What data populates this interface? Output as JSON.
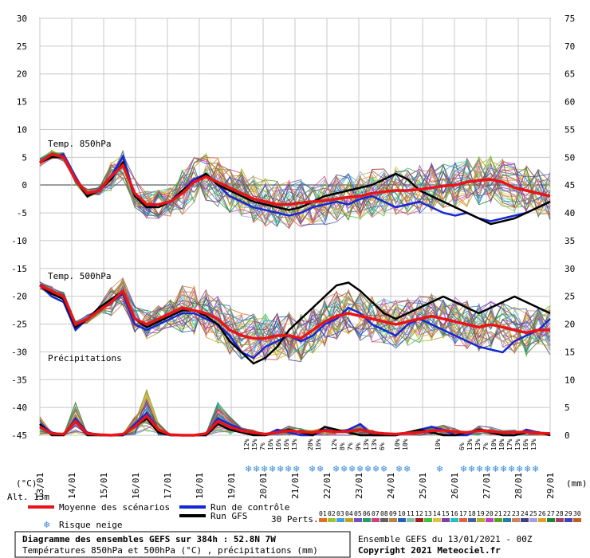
{
  "chart_data": {
    "type": "line",
    "left_axis_labels": [
      "30",
      "25",
      "20",
      "15",
      "10",
      "5",
      "0",
      "-5",
      "-10",
      "-15",
      "-20",
      "-25",
      "-30",
      "-35",
      "-40",
      "-45"
    ],
    "right_axis_labels": [
      "75",
      "70",
      "65",
      "60",
      "55",
      "50",
      "45",
      "40",
      "35",
      "30",
      "25",
      "20",
      "15",
      "10",
      "5",
      "0"
    ],
    "x_dates": [
      "13/01",
      "14/01",
      "15/01",
      "16/01",
      "17/01",
      "18/01",
      "19/01",
      "20/01",
      "21/01",
      "22/01",
      "23/01",
      "24/01",
      "25/01",
      "26/01",
      "27/01",
      "28/01",
      "29/01"
    ],
    "left_unit": "(°C)",
    "right_unit": "(mm)",
    "panels": {
      "t850_label": "Temp. 850hPa",
      "t500_label": "Temp. 500hPa",
      "precip_label": "Précipitations"
    },
    "series": [
      {
        "name": "Moyenne des scénarios",
        "color": "#e8141a",
        "t850": [
          4,
          5.5,
          5,
          1,
          -1.5,
          -1,
          1.5,
          3.5,
          -1.5,
          -3.5,
          -3.5,
          -3,
          -1.5,
          0.5,
          1.5,
          0.5,
          -0.5,
          -1.5,
          -2.5,
          -3,
          -3.5,
          -3.5,
          -3.2,
          -3,
          -2.8,
          -2.5,
          -2.2,
          -2,
          -1.5,
          -1.2,
          -1,
          -1,
          -0.8,
          -0.5,
          -0.2,
          0,
          0.5,
          0.8,
          1,
          0.5,
          -0.5,
          -1,
          -1.5,
          -2
        ],
        "t500": [
          -18,
          -19,
          -20,
          -25,
          -24,
          -22.5,
          -21,
          -19,
          -24,
          -25,
          -24,
          -23,
          -22,
          -22.5,
          -23,
          -24,
          -26,
          -27,
          -27.5,
          -27.5,
          -27,
          -27,
          -27.5,
          -26,
          -24.5,
          -23.5,
          -23,
          -23.5,
          -24,
          -24.5,
          -25,
          -24.5,
          -24,
          -23.5,
          -24,
          -24.5,
          -25,
          -25.5,
          -25,
          -25.5,
          -26,
          -26.5,
          -26,
          -26
        ],
        "precip": [
          1.5,
          0.3,
          0.2,
          2.5,
          0.3,
          0.1,
          0,
          0.2,
          1.5,
          3.5,
          1,
          0.1,
          0,
          0,
          0.3,
          2.5,
          1.5,
          0.8,
          0.5,
          0.2,
          0.5,
          0.8,
          0.6,
          0.5,
          0.8,
          0.6,
          0.7,
          1,
          0.5,
          0.3,
          0.2,
          0.4,
          0.5,
          0.8,
          0.9,
          0.6,
          0.5,
          0.8,
          0.7,
          0.5,
          0.5,
          0.6,
          0.4,
          0.3
        ]
      },
      {
        "name": "Run de contrôle",
        "color": "#1428d2",
        "t850": [
          4,
          5,
          5.5,
          1.5,
          -2,
          -1,
          1.5,
          5,
          -2,
          -4,
          -3.5,
          -3,
          -1,
          1,
          2,
          0,
          -2,
          -3,
          -4,
          -4.5,
          -5,
          -5.5,
          -5,
          -4,
          -3.5,
          -3,
          -3.5,
          -2.5,
          -2,
          -3,
          -4,
          -3.5,
          -3,
          -4,
          -5,
          -5.5,
          -5,
          -6,
          -6.5,
          -6,
          -5.5,
          -5,
          -4,
          -3
        ],
        "t500": [
          -18,
          -20,
          -21,
          -26,
          -24,
          -22,
          -21,
          -19.5,
          -25,
          -26,
          -25,
          -24,
          -23,
          -23,
          -24,
          -25,
          -27,
          -30,
          -31,
          -29,
          -28,
          -27,
          -28,
          -27,
          -25,
          -24,
          -22,
          -23,
          -25,
          -26,
          -27,
          -25,
          -24,
          -25,
          -26,
          -27,
          -28,
          -29,
          -29.5,
          -30,
          -28,
          -27,
          -26,
          -24
        ],
        "precip": [
          2,
          0.5,
          0,
          3,
          0.5,
          0,
          0,
          0,
          2,
          4,
          1,
          0,
          0,
          0,
          0,
          3,
          2,
          1,
          0.5,
          0,
          1,
          0.5,
          0,
          0,
          1,
          0.5,
          1,
          2,
          0,
          0,
          0,
          0.5,
          1,
          1.5,
          1,
          0,
          0,
          1,
          0.5,
          0,
          0,
          1,
          0.5,
          0
        ]
      },
      {
        "name": "Run GFS",
        "color": "#000000",
        "t850": [
          4,
          5,
          5,
          1,
          -2,
          -1,
          1,
          4,
          -2,
          -4,
          -4,
          -3,
          -1,
          0.5,
          2,
          0,
          -1,
          -2,
          -3,
          -3.5,
          -4,
          -4.5,
          -4,
          -3,
          -2,
          -1.5,
          -1,
          -0.5,
          0,
          1,
          2,
          1,
          -1,
          -2,
          -3,
          -4,
          -5,
          -6,
          -7,
          -6.5,
          -6,
          -5,
          -4,
          -3
        ],
        "t500": [
          -18,
          -19.5,
          -20.5,
          -25.5,
          -24,
          -22,
          -20.5,
          -19,
          -24,
          -25.5,
          -24.5,
          -23.5,
          -22.5,
          -22.5,
          -23.5,
          -25,
          -28,
          -30,
          -32,
          -31,
          -29,
          -26,
          -24,
          -22,
          -20,
          -18,
          -17.5,
          -19,
          -21,
          -23,
          -24,
          -23,
          -22,
          -21,
          -20,
          -21,
          -22,
          -23,
          -22,
          -21,
          -20,
          -21,
          -22,
          -23
        ],
        "precip": [
          2,
          0,
          0,
          2.5,
          0,
          0,
          0,
          0,
          1.5,
          3,
          0.5,
          0,
          0,
          0,
          0,
          2,
          1,
          0.5,
          0,
          0,
          0.5,
          1,
          0.5,
          0,
          1.5,
          1,
          0.5,
          0,
          0,
          0,
          0,
          0.5,
          1,
          0.5,
          0,
          0,
          0.5,
          1,
          0.5,
          0,
          0,
          0.5,
          0.5,
          0
        ]
      }
    ]
  },
  "snow_risk": {
    "percentages": [
      "12%",
      "15%",
      "7%",
      "16%",
      "16%",
      "16%",
      "13%",
      "20%",
      "16%",
      "12%",
      "8%",
      "7%",
      "9%",
      "13%",
      "13%",
      "6%",
      "10%",
      "10%",
      "10%",
      "6%",
      "13%",
      "13%",
      "7%",
      "10%",
      "10%",
      "17%",
      "13%",
      "16%",
      "13%"
    ]
  },
  "legend": {
    "altitude": "Alt. 13m",
    "mean_label": "Moyenne des scénarios",
    "control_label": "Run de contrôle",
    "gfs_label": "Run GFS",
    "snow_label": "Risque neige",
    "perts_label": "30 Perts.",
    "perts_numbers": [
      "01",
      "02",
      "03",
      "04",
      "05",
      "06",
      "07",
      "08",
      "09",
      "10",
      "11",
      "12",
      "13",
      "14",
      "15",
      "16",
      "17",
      "18",
      "19",
      "20",
      "21",
      "22",
      "23",
      "24",
      "25",
      "26",
      "27",
      "28",
      "29",
      "30"
    ],
    "perts_colors": [
      "#e07020",
      "#a0c030",
      "#40a0e0",
      "#c0a020",
      "#7050c0",
      "#20a060",
      "#d04080",
      "#606060",
      "#c08040",
      "#2060c0",
      "#80c0a0",
      "#a02020",
      "#40c040",
      "#e0c040",
      "#8040a0",
      "#20c0c0",
      "#e06040",
      "#4060a0",
      "#b0b020",
      "#c040c0",
      "#60a020",
      "#2080a0",
      "#d08060",
      "#404080",
      "#a0a0e0",
      "#e0a020",
      "#208040",
      "#a04060",
      "#4040c0",
      "#c06020"
    ]
  },
  "footer": {
    "title": "Diagramme des ensembles GEFS sur 384h : 52.8N 7W",
    "subtitle": "Températures 850hPa et 500hPa (°C) , précipitations (mm)",
    "run_info": "Ensemble GEFS du 13/01/2021 - 00Z",
    "copyright": "Copyright 2021 Meteociel.fr"
  }
}
